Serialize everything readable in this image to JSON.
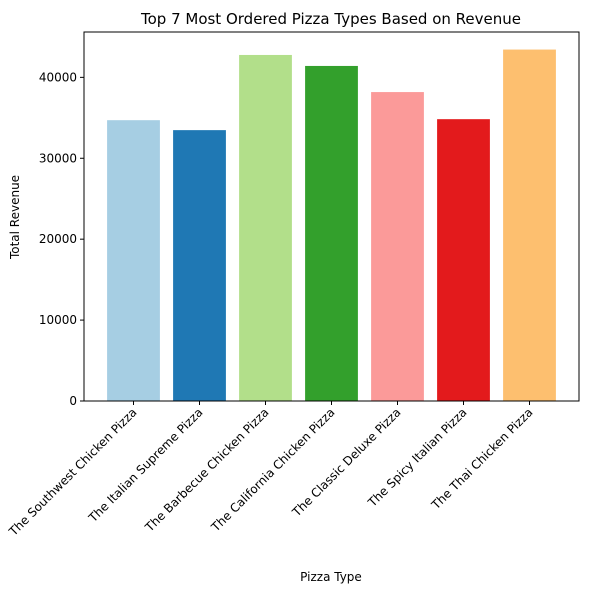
{
  "chart_data": {
    "type": "bar",
    "title": "Top 7 Most Ordered Pizza Types Based on Revenue",
    "xlabel": "Pizza Type",
    "ylabel": "Total Revenue",
    "categories": [
      "The Southwest Chicken Pizza",
      "The Italian Supreme Pizza",
      "The Barbecue Chicken Pizza",
      "The California Chicken Pizza",
      "The Classic Deluxe Pizza",
      "The Spicy Italian Pizza",
      "The Thai Chicken Pizza"
    ],
    "values": [
      34705.75,
      33476.75,
      42768.0,
      41409.5,
      38180.5,
      34831.25,
      43434.25
    ],
    "colors": [
      "#a6cee3",
      "#1f78b4",
      "#b2df8a",
      "#33a02c",
      "#fb9a99",
      "#e31a1c",
      "#fdbf6f"
    ],
    "ylim": [
      0,
      45605
    ],
    "yticks": [
      0,
      10000,
      20000,
      30000,
      40000
    ],
    "ytick_labels": [
      "0",
      "10000",
      "20000",
      "30000",
      "40000"
    ],
    "xtick_rotation": 45,
    "grid": false,
    "legend": "none"
  }
}
